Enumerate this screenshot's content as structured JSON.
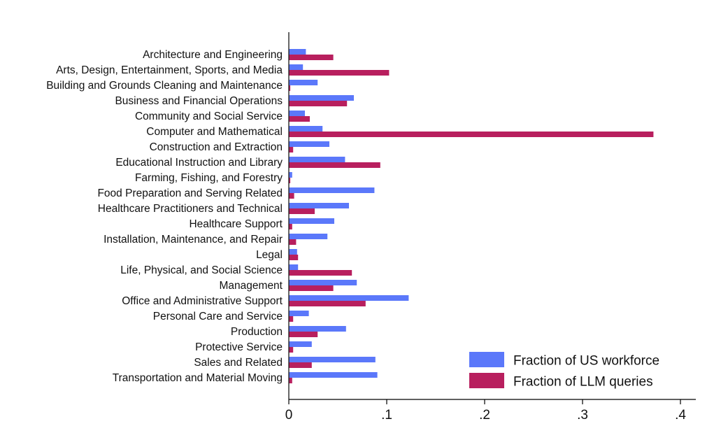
{
  "colors": {
    "workforce": "#5b78fa",
    "llm": "#b81f5e",
    "axis": "#000000",
    "text": "#111111",
    "background": "#ffffff"
  },
  "chart_data": {
    "type": "bar",
    "orientation": "horizontal",
    "title": "",
    "xlabel": "",
    "ylabel": "",
    "xlim": [
      0,
      0.41
    ],
    "x_ticks": [
      0,
      0.1,
      0.2,
      0.3,
      0.4
    ],
    "x_tick_labels": [
      "0",
      ".1",
      ".2",
      ".3",
      ".4"
    ],
    "grid": false,
    "legend_position": "bottom-right",
    "categories": [
      "Architecture and Engineering",
      "Arts, Design, Entertainment, Sports, and Media",
      "Building and Grounds Cleaning and Maintenance",
      "Business and Financial Operations",
      "Community and Social Service",
      "Computer and Mathematical",
      "Construction and Extraction",
      "Educational Instruction and Library",
      "Farming, Fishing, and Forestry",
      "Food Preparation and Serving Related",
      "Healthcare Practitioners and Technical",
      "Healthcare Support",
      "Installation, Maintenance, and Repair",
      "Legal",
      "Life, Physical, and Social Science",
      "Management",
      "Office and Administrative Support",
      "Personal Care and Service",
      "Production",
      "Protective Service",
      "Sales and Related",
      "Transportation and Material Moving"
    ],
    "series": [
      {
        "name": "Fraction of US workforce",
        "values": [
          0.017,
          0.014,
          0.029,
          0.066,
          0.016,
          0.034,
          0.041,
          0.057,
          0.003,
          0.087,
          0.061,
          0.046,
          0.039,
          0.008,
          0.009,
          0.069,
          0.122,
          0.02,
          0.058,
          0.023,
          0.088,
          0.09
        ]
      },
      {
        "name": "Fraction of LLM queries",
        "values": [
          0.045,
          0.102,
          0.001,
          0.059,
          0.021,
          0.372,
          0.004,
          0.093,
          0.001,
          0.005,
          0.026,
          0.003,
          0.007,
          0.009,
          0.064,
          0.045,
          0.078,
          0.004,
          0.029,
          0.004,
          0.023,
          0.003
        ]
      }
    ]
  }
}
